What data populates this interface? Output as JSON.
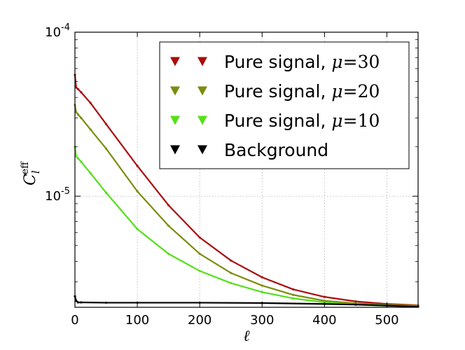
{
  "chart_data": {
    "type": "scatter",
    "title": "",
    "xlabel": "ℓ",
    "ylabel": {
      "base": "C",
      "sub": "l",
      "sup": "eff"
    },
    "xlim": [
      0,
      550
    ],
    "ylim": [
      2.1e-06,
      0.0001
    ],
    "yscale": "log",
    "grid": true,
    "legend_position": "top-right",
    "x_ticks": [
      {
        "value": 0,
        "label": "0"
      },
      {
        "value": 100,
        "label": "100"
      },
      {
        "value": 200,
        "label": "200"
      },
      {
        "value": 300,
        "label": "300"
      },
      {
        "value": 400,
        "label": "400"
      },
      {
        "value": 500,
        "label": "500"
      }
    ],
    "y_ticks": [
      {
        "value": 0.0001,
        "label": "10",
        "exp": "-4"
      },
      {
        "value": 1e-05,
        "label": "10",
        "exp": "-5"
      }
    ],
    "series": [
      {
        "name": "Pure signal, ",
        "mu": "μ",
        "eq": "=",
        "num": "30",
        "color": "#aa0d0d",
        "x": [
          0,
          2,
          5,
          10,
          25,
          50,
          100,
          150,
          200,
          250,
          300,
          350,
          400,
          450,
          500,
          550
        ],
        "y": [
          5.5e-05,
          4.6e-05,
          4.5e-05,
          4.3e-05,
          3.7e-05,
          2.75e-05,
          1.53e-05,
          8.8e-06,
          5.6e-06,
          4.05e-06,
          3.2e-06,
          2.7e-06,
          2.43e-06,
          2.28e-06,
          2.2e-06,
          2.16e-06
        ]
      },
      {
        "name": "Pure signal, ",
        "mu": "μ",
        "eq": "=",
        "num": "20",
        "color": "#7d8c0e",
        "x": [
          0,
          2,
          5,
          10,
          25,
          50,
          100,
          150,
          200,
          250,
          300,
          350,
          400,
          450,
          500,
          550
        ],
        "y": [
          3.6e-05,
          3.25e-05,
          3.15e-05,
          3e-05,
          2.55e-05,
          1.95e-05,
          1.07e-05,
          6.6e-06,
          4.45e-06,
          3.4e-06,
          2.85e-06,
          2.5e-06,
          2.3e-06,
          2.22e-06,
          2.17e-06,
          2.15e-06
        ]
      },
      {
        "name": "Pure signal, ",
        "mu": "μ",
        "eq": "=",
        "num": "10",
        "color": "#55e01a",
        "x": [
          0,
          2,
          5,
          10,
          25,
          50,
          100,
          150,
          200,
          250,
          300,
          350,
          400,
          450,
          500,
          550
        ],
        "y": [
          2e-05,
          1.75e-05,
          1.7e-05,
          1.62e-05,
          1.38e-05,
          1.05e-05,
          6.3e-06,
          4.45e-06,
          3.5e-06,
          2.95e-06,
          2.6e-06,
          2.38e-06,
          2.25e-06,
          2.18e-06,
          2.15e-06,
          2.13e-06
        ]
      },
      {
        "name": "Background",
        "mu": "",
        "eq": "",
        "num": "",
        "color": "#000000",
        "x": [
          0,
          2,
          5,
          10,
          50,
          100,
          200,
          300,
          400,
          450,
          500,
          550
        ],
        "y": [
          2.45e-06,
          2.3e-06,
          2.25e-06,
          2.25e-06,
          2.24e-06,
          2.24e-06,
          2.24e-06,
          2.23e-06,
          2.2e-06,
          2.18e-06,
          2.15e-06,
          2.12e-06
        ]
      }
    ]
  }
}
